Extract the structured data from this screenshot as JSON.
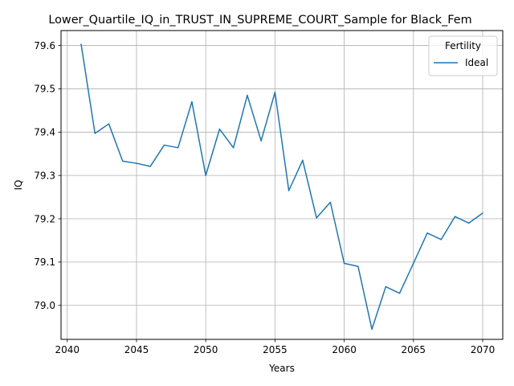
{
  "chart_data": {
    "type": "line",
    "title": "Lower_Quartile_IQ_in_TRUST_IN_SUPREME_COURT_Sample for Black_Fem",
    "xlabel": "Years",
    "ylabel": "IQ",
    "xlim": [
      2039.55,
      2071.45
    ],
    "ylim": [
      78.9215,
      79.6345
    ],
    "xticks": [
      2040,
      2045,
      2050,
      2055,
      2060,
      2065,
      2070
    ],
    "yticks": [
      79.0,
      79.1,
      79.2,
      79.3,
      79.4,
      79.5,
      79.6
    ],
    "xtick_labels": [
      "2040",
      "2045",
      "2050",
      "2055",
      "2060",
      "2065",
      "2070"
    ],
    "ytick_labels": [
      "79.0",
      "79.1",
      "79.2",
      "79.3",
      "79.4",
      "79.5",
      "79.6"
    ],
    "grid": true,
    "legend": {
      "title": "Fertility",
      "placement": "top-right"
    },
    "series": [
      {
        "name": "Ideal",
        "color": "#1f77b4",
        "x": [
          2041,
          2042,
          2043,
          2044,
          2045,
          2046,
          2047,
          2048,
          2049,
          2050,
          2051,
          2052,
          2053,
          2054,
          2055,
          2056,
          2057,
          2058,
          2059,
          2060,
          2061,
          2062,
          2063,
          2064,
          2065,
          2066,
          2067,
          2068,
          2069,
          2070
        ],
        "y": [
          79.603,
          79.397,
          79.419,
          79.333,
          79.328,
          79.321,
          79.37,
          79.364,
          79.47,
          79.3,
          79.407,
          79.364,
          79.485,
          79.38,
          79.492,
          79.265,
          79.335,
          79.202,
          79.238,
          79.097,
          79.09,
          78.945,
          79.043,
          79.028,
          79.097,
          79.167,
          79.152,
          79.205,
          79.19,
          79.213
        ]
      }
    ]
  }
}
